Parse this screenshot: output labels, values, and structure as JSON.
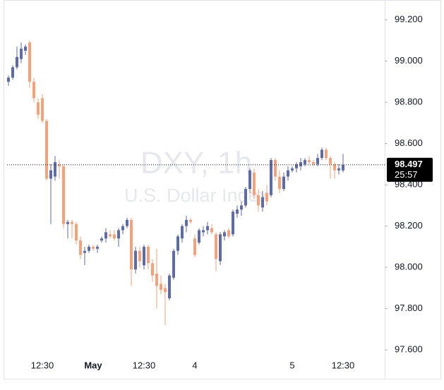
{
  "chart_data": {
    "type": "candlestick",
    "title": "DXY, 1h",
    "subtitle": "U.S. Dollar Index",
    "categories": [
      null,
      null,
      null,
      null,
      null,
      null,
      null,
      null,
      "12:30",
      null,
      null,
      null,
      null,
      null,
      null,
      null,
      null,
      null,
      null,
      null,
      "May",
      null,
      null,
      null,
      null,
      null,
      null,
      null,
      null,
      null,
      null,
      null,
      "12:30",
      null,
      null,
      null,
      null,
      null,
      null,
      null,
      null,
      null,
      null,
      null,
      "4",
      null,
      null,
      null,
      null,
      null,
      null,
      null,
      null,
      null,
      null,
      null,
      null,
      null,
      null,
      null,
      null,
      null,
      null,
      null,
      null,
      null,
      null,
      "5",
      null,
      null,
      null,
      null,
      null,
      null,
      null,
      null,
      null,
      null,
      null,
      "12:30"
    ],
    "open": [
      98.9,
      98.92,
      98.97,
      99.01,
      99.05,
      99.09,
      98.9,
      98.8,
      98.82,
      98.71,
      98.43,
      98.44,
      98.5,
      98.49,
      98.21,
      98.22,
      98.21,
      98.13,
      98.07,
      98.08,
      98.1,
      98.09,
      98.13,
      98.14,
      98.16,
      98.16,
      98.14,
      98.18,
      98.2,
      98.23,
      97.99,
      98.08,
      98.01,
      98.1,
      98.02,
      97.97,
      97.92,
      97.9,
      97.85,
      97.95,
      98.08,
      98.14,
      98.2,
      98.23,
      98.14,
      98.12,
      98.17,
      98.18,
      98.19,
      98.16,
      98.03,
      98.15,
      98.18,
      98.16,
      98.26,
      98.28,
      98.3,
      98.38,
      98.46,
      98.35,
      98.29,
      98.36,
      98.35,
      98.52,
      98.44,
      98.38,
      98.44,
      98.47,
      98.48,
      98.49,
      98.5,
      98.52,
      98.51,
      98.5,
      98.53,
      98.57,
      98.53,
      98.5,
      98.47,
      98.47
    ],
    "high": [
      98.93,
      98.98,
      99.07,
      99.09,
      99.08,
      99.1,
      98.92,
      98.82,
      98.84,
      98.72,
      98.5,
      98.54,
      98.52,
      98.5,
      98.23,
      98.23,
      98.22,
      98.15,
      98.1,
      98.11,
      98.11,
      98.11,
      98.15,
      98.19,
      98.18,
      98.18,
      98.19,
      98.21,
      98.24,
      98.24,
      98.1,
      98.1,
      98.11,
      98.11,
      98.04,
      98.09,
      97.96,
      97.92,
      97.97,
      98.09,
      98.16,
      98.21,
      98.25,
      98.24,
      98.16,
      98.19,
      98.2,
      98.22,
      98.21,
      98.17,
      98.17,
      98.18,
      98.19,
      98.28,
      98.3,
      98.32,
      98.39,
      98.48,
      98.48,
      98.38,
      98.37,
      98.4,
      98.53,
      98.53,
      98.47,
      98.46,
      98.49,
      98.49,
      98.51,
      98.53,
      98.53,
      98.54,
      98.52,
      98.55,
      98.58,
      98.58,
      98.54,
      98.51,
      98.5,
      98.55
    ],
    "low": [
      98.88,
      98.91,
      98.96,
      98.99,
      99.03,
      98.87,
      98.8,
      98.72,
      98.7,
      98.42,
      98.21,
      98.42,
      98.43,
      98.19,
      98.14,
      98.14,
      98.11,
      98.04,
      98.01,
      98.07,
      98.08,
      98.07,
      98.12,
      98.12,
      98.14,
      98.13,
      98.1,
      98.16,
      98.19,
      97.91,
      97.97,
      98.0,
      97.99,
      97.99,
      97.93,
      97.8,
      97.87,
      97.72,
      97.84,
      97.94,
      98.06,
      98.12,
      98.17,
      98.21,
      98.05,
      98.11,
      98.15,
      98.16,
      98.16,
      97.98,
      98.01,
      98.13,
      98.14,
      98.15,
      98.24,
      98.25,
      98.29,
      98.36,
      98.33,
      98.27,
      98.27,
      98.3,
      98.34,
      98.42,
      98.36,
      98.37,
      98.42,
      98.46,
      98.46,
      98.47,
      98.49,
      98.5,
      98.49,
      98.49,
      98.52,
      98.52,
      98.43,
      98.43,
      98.45,
      98.46
    ],
    "close": [
      98.92,
      98.97,
      99.02,
      99.06,
      99.07,
      98.9,
      98.82,
      98.74,
      98.71,
      98.43,
      98.47,
      98.51,
      98.49,
      98.21,
      98.22,
      98.21,
      98.13,
      98.06,
      98.08,
      98.1,
      98.09,
      98.1,
      98.14,
      98.17,
      98.15,
      98.14,
      98.18,
      98.2,
      98.23,
      97.99,
      98.08,
      98.03,
      98.1,
      98.02,
      97.96,
      97.91,
      97.89,
      97.88,
      97.96,
      98.08,
      98.15,
      98.2,
      98.23,
      98.22,
      98.06,
      98.18,
      98.18,
      98.2,
      98.17,
      98.04,
      98.16,
      98.17,
      98.15,
      98.27,
      98.28,
      98.3,
      98.38,
      98.47,
      98.35,
      98.3,
      98.34,
      98.32,
      98.52,
      98.44,
      98.38,
      98.44,
      98.47,
      98.48,
      98.5,
      98.51,
      98.52,
      98.51,
      98.5,
      98.53,
      98.57,
      98.53,
      98.5,
      98.47,
      98.48,
      98.497
    ],
    "up_color": "#5d6ba6",
    "down_color": "#f5a27a",
    "ylim": [
      97.484,
      99.279
    ],
    "yticks": [
      {
        "value": 97.6,
        "label": "97.600"
      },
      {
        "value": 97.8,
        "label": "97.800"
      },
      {
        "value": 98.0,
        "label": "98.000"
      },
      {
        "value": 98.2,
        "label": "98.200"
      },
      {
        "value": 98.4,
        "label": "98.400"
      },
      {
        "value": 98.6,
        "label": "98.600"
      },
      {
        "value": 98.8,
        "label": "98.800"
      },
      {
        "value": 99.0,
        "label": "99.000"
      },
      {
        "value": 99.2,
        "label": "99.200"
      }
    ],
    "last_price": 98.497,
    "countdown": "25:57",
    "grid": false
  }
}
